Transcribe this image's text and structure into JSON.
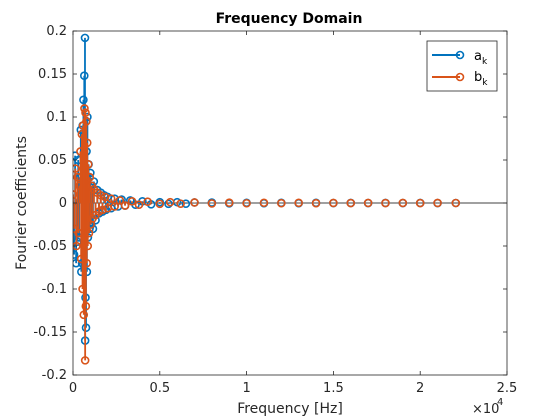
{
  "colors": {
    "a": "#0072BD",
    "b": "#D95319",
    "axis": "#262626",
    "zero": "#000000"
  },
  "chart_data": {
    "type": "scatter",
    "title": "Frequency Domain",
    "xlabel": "Frequency [Hz]",
    "ylabel": "Fourier coefficients",
    "xlim": [
      0,
      25000
    ],
    "ylim": [
      -0.2,
      0.2
    ],
    "x_scale_label": "×10",
    "x_scale_exp": "4",
    "xticks": [
      0,
      5000,
      10000,
      15000,
      20000,
      25000
    ],
    "xtick_labels": [
      "0",
      "0.5",
      "1",
      "1.5",
      "2",
      "2.5"
    ],
    "yticks": [
      -0.2,
      -0.15,
      -0.1,
      -0.05,
      0,
      0.05,
      0.1,
      0.15,
      0.2
    ],
    "ytick_labels": [
      "-0.2",
      "-0.15",
      "-0.1",
      "-0.05",
      "0",
      "0.05",
      "0.1",
      "0.15",
      "0.2"
    ],
    "grid": false,
    "legend_position": "top-right",
    "zero_line": true,
    "series": [
      {
        "name": "a",
        "name_sub": "k",
        "color": "#0072BD",
        "marker": "circle",
        "stem": true,
        "points": [
          [
            0,
            0.002
          ],
          [
            60,
            -0.06
          ],
          [
            120,
            0.055
          ],
          [
            180,
            -0.07
          ],
          [
            250,
            -0.045
          ],
          [
            300,
            0.05
          ],
          [
            350,
            -0.04
          ],
          [
            400,
            0.03
          ],
          [
            450,
            0.085
          ],
          [
            480,
            -0.08
          ],
          [
            520,
            -0.07
          ],
          [
            560,
            0.09
          ],
          [
            600,
            0.12
          ],
          [
            650,
            0.148
          ],
          [
            690,
            0.192
          ],
          [
            700,
            -0.16
          ],
          [
            720,
            -0.11
          ],
          [
            750,
            -0.145
          ],
          [
            780,
            0.06
          ],
          [
            800,
            -0.08
          ],
          [
            830,
            0.1
          ],
          [
            860,
            -0.04
          ],
          [
            900,
            0.045
          ],
          [
            950,
            -0.03
          ],
          [
            1000,
            0.035
          ],
          [
            1050,
            -0.025
          ],
          [
            1100,
            0.02
          ],
          [
            1150,
            -0.03
          ],
          [
            1200,
            0.025
          ],
          [
            1300,
            -0.02
          ],
          [
            1400,
            0.015
          ],
          [
            1500,
            -0.012
          ],
          [
            1600,
            0.012
          ],
          [
            1700,
            -0.01
          ],
          [
            1800,
            0.009
          ],
          [
            1900,
            -0.008
          ],
          [
            2000,
            0.007
          ],
          [
            2200,
            -0.006
          ],
          [
            2400,
            0.005
          ],
          [
            2600,
            -0.004
          ],
          [
            2800,
            0.004
          ],
          [
            3000,
            -0.003
          ],
          [
            3300,
            0.003
          ],
          [
            3600,
            -0.002
          ],
          [
            4000,
            0.002
          ],
          [
            4500,
            -0.0015
          ],
          [
            5000,
            0.001
          ],
          [
            5500,
            -0.001
          ],
          [
            6000,
            0.001
          ],
          [
            6500,
            -0.0008
          ],
          [
            7000,
            0.0006
          ],
          [
            8000,
            0.0005
          ],
          [
            9000,
            -0.0004
          ],
          [
            10000,
            0.0003
          ],
          [
            11000,
            -0.0003
          ],
          [
            12000,
            0.0002
          ],
          [
            13000,
            -0.0002
          ],
          [
            14000,
            0.0002
          ],
          [
            15000,
            -0.0001
          ],
          [
            16000,
            0.0001
          ],
          [
            17000,
            -0.0001
          ],
          [
            18000,
            0.0001
          ],
          [
            19000,
            -0.0001
          ],
          [
            20000,
            0.0001
          ],
          [
            21000,
            -0.0001
          ],
          [
            22050,
            0.0
          ]
        ]
      },
      {
        "name": "b",
        "name_sub": "k",
        "color": "#D95319",
        "marker": "circle",
        "stem": true,
        "points": [
          [
            0,
            0.01
          ],
          [
            80,
            -0.03
          ],
          [
            140,
            0.04
          ],
          [
            200,
            -0.05
          ],
          [
            260,
            0.03
          ],
          [
            320,
            -0.035
          ],
          [
            380,
            0.02
          ],
          [
            430,
            0.06
          ],
          [
            470,
            -0.065
          ],
          [
            510,
            0.08
          ],
          [
            550,
            -0.1
          ],
          [
            580,
            0.09
          ],
          [
            620,
            -0.13
          ],
          [
            660,
            0.11
          ],
          [
            700,
            -0.183
          ],
          [
            720,
            0.105
          ],
          [
            740,
            -0.12
          ],
          [
            770,
            0.095
          ],
          [
            790,
            -0.07
          ],
          [
            820,
            0.07
          ],
          [
            850,
            -0.05
          ],
          [
            880,
            0.045
          ],
          [
            920,
            -0.035
          ],
          [
            970,
            0.03
          ],
          [
            1020,
            -0.025
          ],
          [
            1080,
            0.02
          ],
          [
            1130,
            -0.018
          ],
          [
            1200,
            0.016
          ],
          [
            1300,
            -0.014
          ],
          [
            1400,
            0.012
          ],
          [
            1500,
            -0.01
          ],
          [
            1600,
            0.009
          ],
          [
            1700,
            -0.008
          ],
          [
            1850,
            0.007
          ],
          [
            2000,
            -0.006
          ],
          [
            2200,
            0.005
          ],
          [
            2400,
            -0.004
          ],
          [
            2700,
            0.003
          ],
          [
            3000,
            -0.003
          ],
          [
            3400,
            0.002
          ],
          [
            3800,
            -0.002
          ],
          [
            4300,
            0.0015
          ],
          [
            5000,
            -0.001
          ],
          [
            5600,
            0.001
          ],
          [
            6200,
            -0.0008
          ],
          [
            7000,
            0.0006
          ],
          [
            8000,
            -0.0005
          ],
          [
            9000,
            0.0004
          ],
          [
            10000,
            -0.0003
          ],
          [
            11000,
            0.0003
          ],
          [
            12000,
            -0.0002
          ],
          [
            13000,
            0.0002
          ],
          [
            14000,
            -0.0002
          ],
          [
            15000,
            0.0001
          ],
          [
            16000,
            -0.0001
          ],
          [
            17000,
            0.0001
          ],
          [
            18000,
            -0.0001
          ],
          [
            19000,
            0.0001
          ],
          [
            20000,
            -0.0001
          ],
          [
            21000,
            0.0001
          ],
          [
            22050,
            0.0
          ]
        ]
      }
    ]
  }
}
